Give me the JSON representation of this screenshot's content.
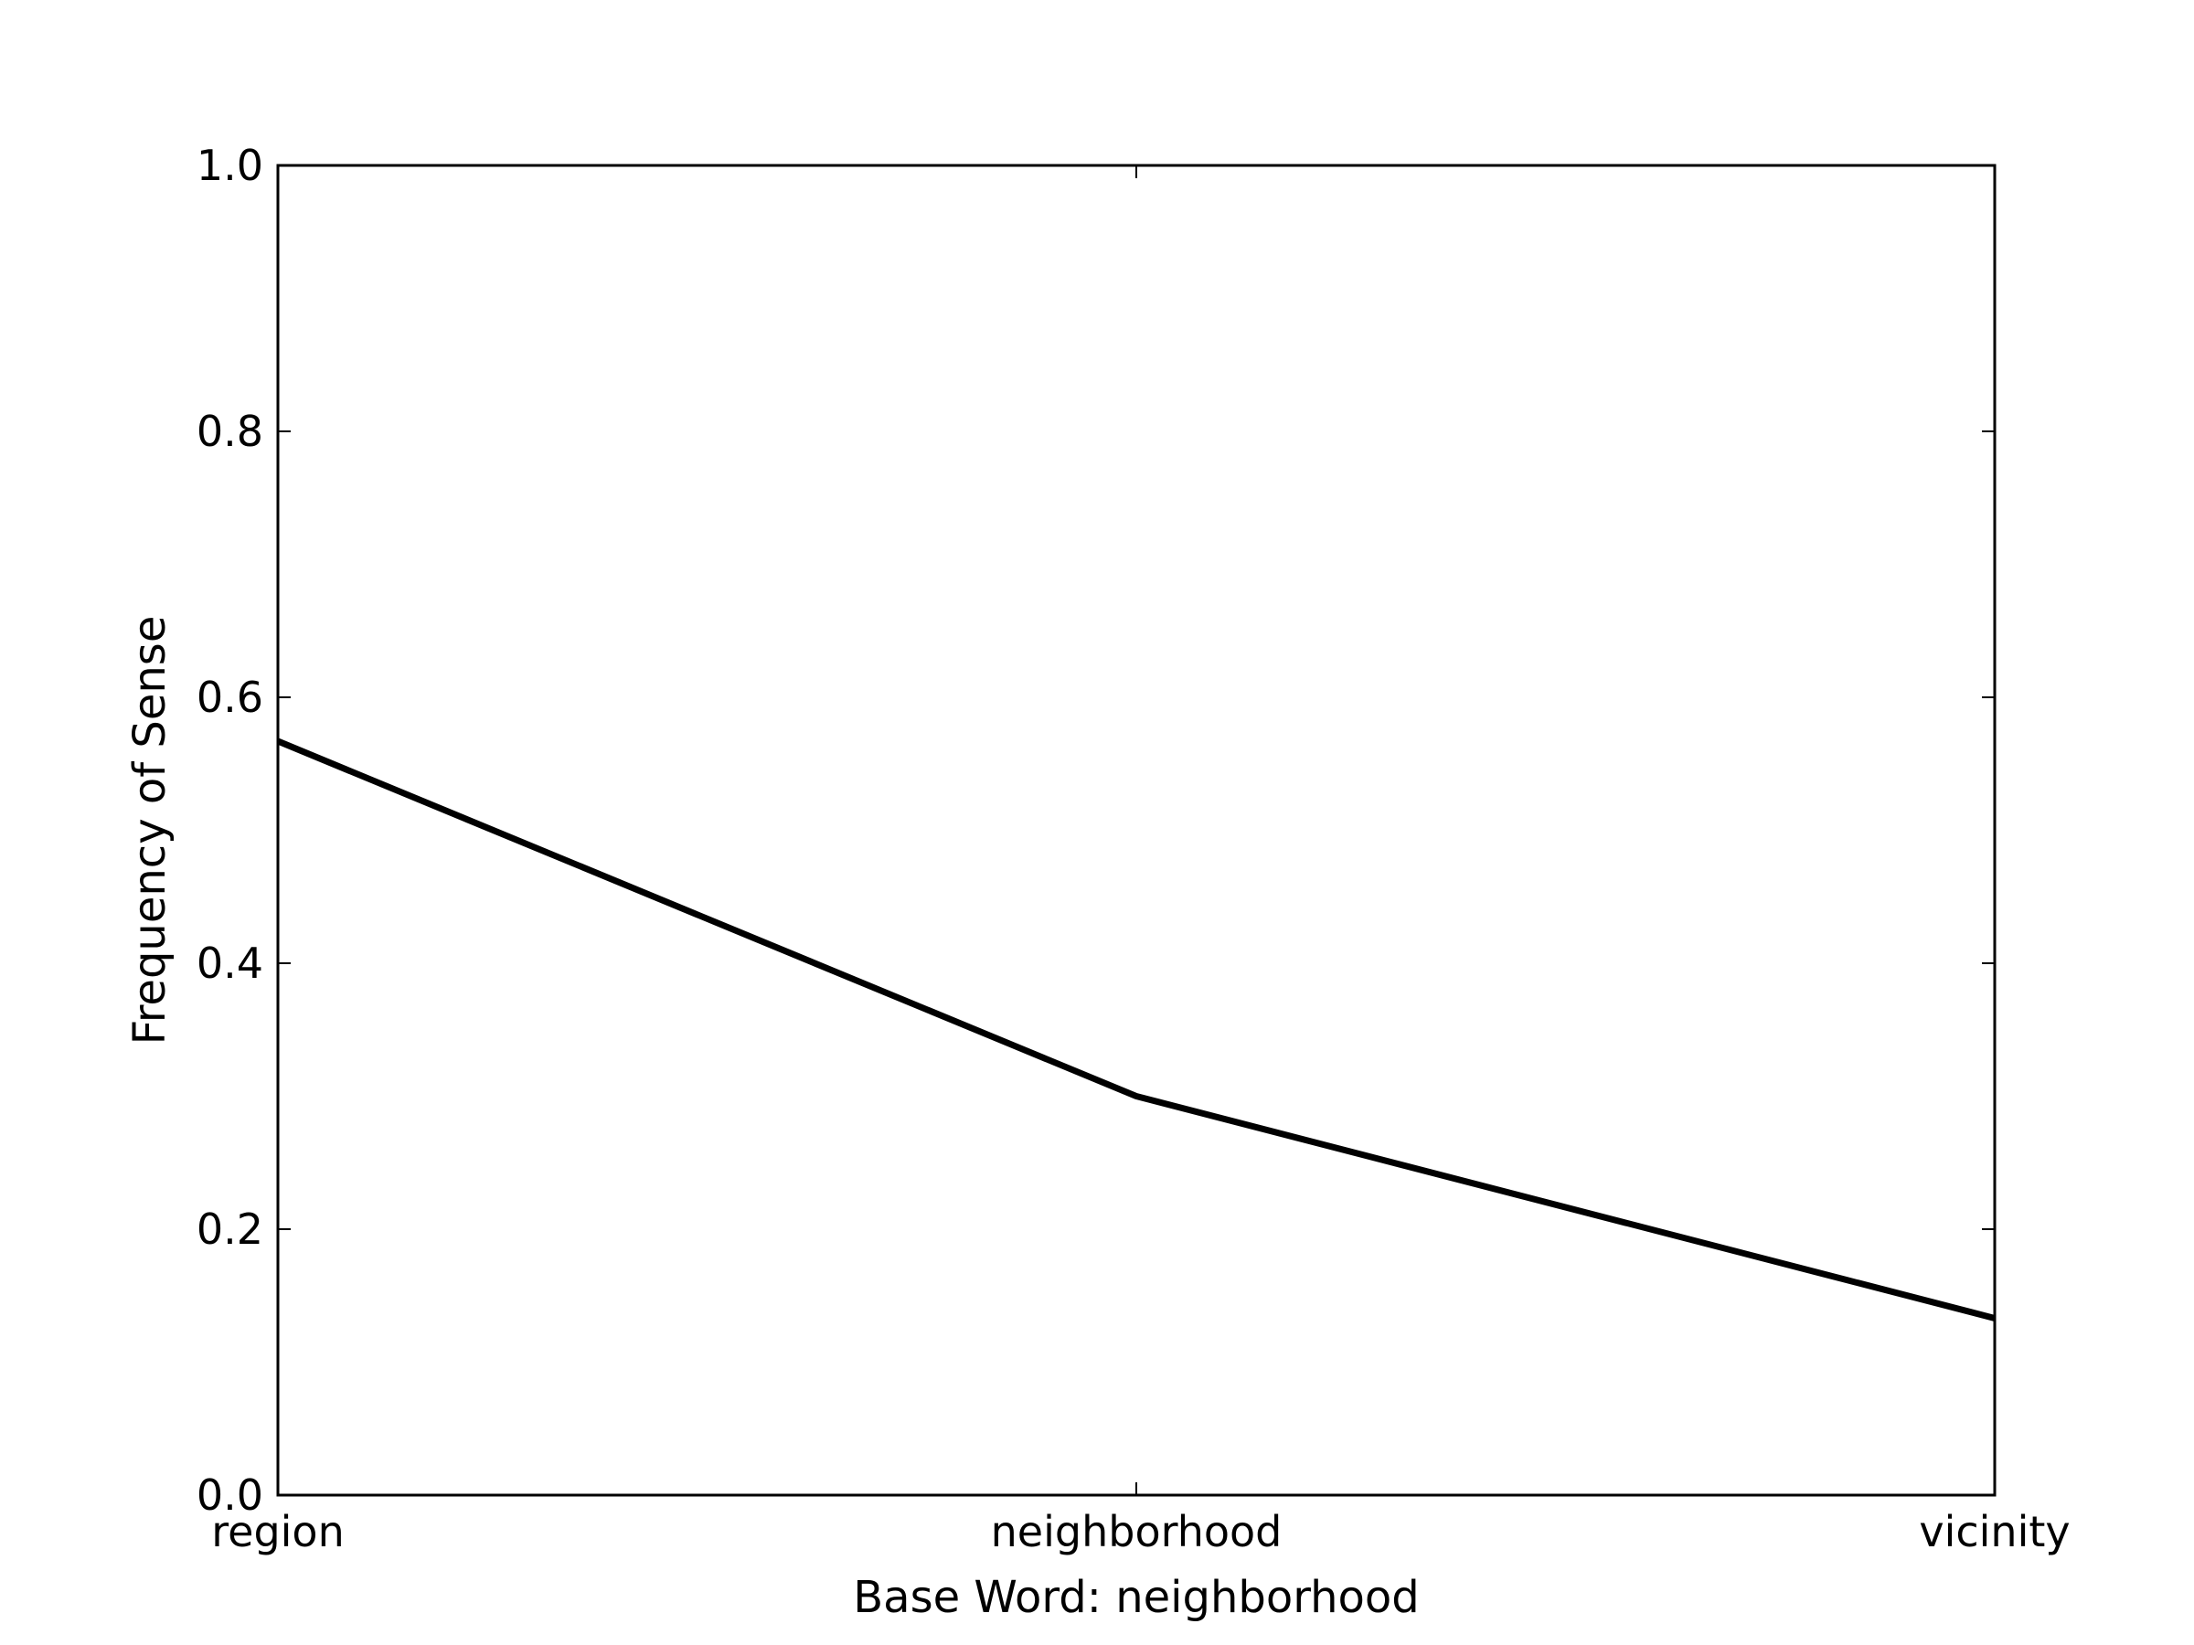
{
  "chart_data": {
    "type": "line",
    "title": "",
    "xlabel": "Base Word: neighborhood",
    "ylabel": "Frequency of Sense",
    "categories": [
      "region",
      "neighborhood",
      "vicinity"
    ],
    "series": [
      {
        "values": [
          0.567,
          0.3,
          0.133
        ],
        "color": "#000000"
      }
    ],
    "ylim": [
      0.0,
      1.0
    ],
    "yticks": [
      "0.0",
      "0.2",
      "0.4",
      "0.6",
      "0.8",
      "1.0"
    ],
    "grid": false,
    "legend": "none"
  }
}
